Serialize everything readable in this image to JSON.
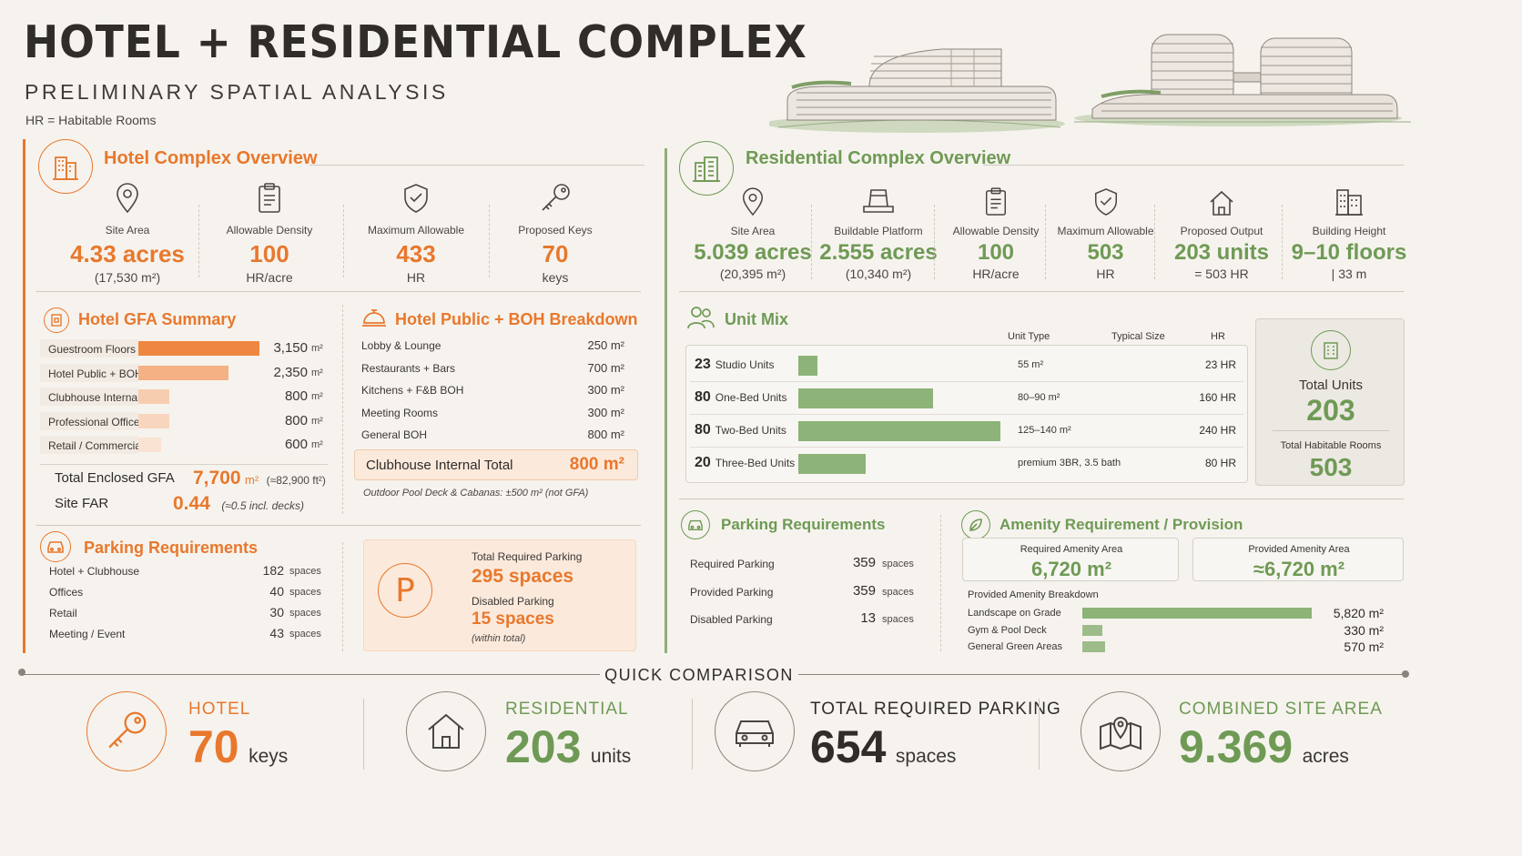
{
  "header": {
    "title": "HOTEL + RESIDENTIAL COMPLEX",
    "subtitle": "PRELIMINARY SPATIAL ANALYSIS",
    "note": "HR = Habitable Rooms"
  },
  "hotel": {
    "title": "Hotel Complex Overview",
    "stats": [
      {
        "label": "Site Area",
        "value": "4.33 acres",
        "sub": "(17,530 m²)",
        "icon": "map-pin-icon"
      },
      {
        "label": "Allowable Density",
        "value": "100",
        "sub": "HR/acre",
        "icon": "clipboard-icon"
      },
      {
        "label": "Maximum Allowable",
        "value": "433",
        "sub": "HR",
        "icon": "shield-check-icon"
      },
      {
        "label": "Proposed Keys",
        "value": "70",
        "sub": "keys",
        "icon": "key-icon"
      }
    ],
    "gfa": {
      "title": "Hotel GFA Summary",
      "rows": [
        {
          "label": "Guestroom Floors",
          "value": "3,150",
          "unit": "m²",
          "amount": 3150
        },
        {
          "label": "Hotel Public + BOH",
          "value": "2,350",
          "unit": "m²",
          "amount": 2350
        },
        {
          "label": "Clubhouse Internal",
          "value": "800",
          "unit": "m²",
          "amount": 800
        },
        {
          "label": "Professional Offices",
          "value": "800",
          "unit": "m²",
          "amount": 800
        },
        {
          "label": "Retail / Commercial",
          "value": "600",
          "unit": "m²",
          "amount": 600
        }
      ],
      "total_label": "Total Enclosed GFA",
      "total_value": "7,700",
      "total_unit": "m²",
      "total_note": "(≈82,900 ft²)",
      "far_label": "Site FAR",
      "far_value": "0.44",
      "far_note": "(≈0.5 incl. decks)"
    },
    "boh": {
      "title": "Hotel Public + BOH Breakdown",
      "rows": [
        {
          "label": "Lobby & Lounge",
          "value": "250 m²"
        },
        {
          "label": "Restaurants + Bars",
          "value": "700 m²"
        },
        {
          "label": "Kitchens + F&B BOH",
          "value": "300 m²"
        },
        {
          "label": "Meeting Rooms",
          "value": "300 m²"
        },
        {
          "label": "General BOH",
          "value": "800 m²"
        }
      ],
      "total_label": "Clubhouse Internal Total",
      "total_value": "800 m²",
      "note": "Outdoor Pool Deck & Cabanas: ±500 m² (not GFA)"
    },
    "parking": {
      "title": "Parking Requirements",
      "rows": [
        {
          "label": "Hotel + Clubhouse",
          "value": "182",
          "unit": "spaces"
        },
        {
          "label": "Offices",
          "value": "40",
          "unit": "spaces"
        },
        {
          "label": "Retail",
          "value": "30",
          "unit": "spaces"
        },
        {
          "label": "Meeting / Event",
          "value": "43",
          "unit": "spaces"
        }
      ],
      "total_label": "Total Required Parking",
      "total_value": "295 spaces",
      "disabled_label": "Disabled Parking",
      "disabled_value": "15 spaces",
      "disabled_note": "(within total)"
    }
  },
  "residential": {
    "title": "Residential Complex Overview",
    "stats": [
      {
        "label": "Site Area",
        "value": "5.039 acres",
        "sub": "(20,395 m²)",
        "icon": "map-pin-icon"
      },
      {
        "label": "Buildable Platform",
        "value": "2.555 acres",
        "sub": "(10,340 m²)",
        "icon": "platform-icon"
      },
      {
        "label": "Allowable Density",
        "value": "100",
        "sub": "HR/acre",
        "icon": "clipboard-icon"
      },
      {
        "label": "Maximum Allowable",
        "value": "503",
        "sub": "HR",
        "icon": "shield-check-icon"
      },
      {
        "label": "Proposed Output",
        "value": "203 units",
        "sub": "= 503 HR",
        "icon": "house-icon"
      },
      {
        "label": "Building Height",
        "value": "9–10 floors",
        "sub": "| 33 m",
        "icon": "building-icon"
      }
    ],
    "unit_mix": {
      "title": "Unit Mix",
      "headers": [
        "Unit Type",
        "Typical Size",
        "HR"
      ],
      "rows": [
        {
          "count": "23",
          "type": "Studio Units",
          "size": "55 m²",
          "hr": "23 HR",
          "hr_value": 23
        },
        {
          "count": "80",
          "type": "One-Bed Units",
          "size": "80–90 m²",
          "hr": "160 HR",
          "hr_value": 160
        },
        {
          "count": "80",
          "type": "Two-Bed Units",
          "size": "125–140 m²",
          "hr": "240 HR",
          "hr_value": 240
        },
        {
          "count": "20",
          "type": "Three-Bed Units",
          "size": "premium 3BR, 3.5 bath",
          "hr": "80 HR",
          "hr_value": 80
        }
      ],
      "total_units_label": "Total Units",
      "total_units_value": "203",
      "total_hr_label": "Total Habitable Rooms",
      "total_hr_value": "503"
    },
    "parking": {
      "title": "Parking Requirements",
      "rows": [
        {
          "label": "Required Parking",
          "value": "359",
          "unit": "spaces"
        },
        {
          "label": "Provided Parking",
          "value": "359",
          "unit": "spaces"
        },
        {
          "label": "Disabled Parking",
          "value": "13",
          "unit": "spaces"
        }
      ]
    },
    "amenity": {
      "title": "Amenity Requirement / Provision",
      "required_label": "Required Amenity Area",
      "required_value": "6,720 m²",
      "provided_label": "Provided Amenity Area",
      "provided_value": "≈6,720 m²",
      "breakdown_label": "Provided Amenity Breakdown",
      "rows": [
        {
          "label": "Landscape on Grade",
          "value": "5,820 m²",
          "amount": 5820
        },
        {
          "label": "Gym & Pool Deck",
          "value": "330 m²",
          "amount": 330
        },
        {
          "label": "General Green Areas",
          "value": "570 m²",
          "amount": 570
        }
      ]
    }
  },
  "comparison": {
    "title": "QUICK COMPARISON",
    "items": [
      {
        "label": "HOTEL",
        "value": "70",
        "unit": "keys",
        "icon": "key-icon"
      },
      {
        "label": "RESIDENTIAL",
        "value": "203",
        "unit": "units",
        "icon": "house-icon"
      },
      {
        "label": "TOTAL REQUIRED PARKING",
        "value": "654",
        "unit": "spaces",
        "icon": "car-icon"
      },
      {
        "label": "COMBINED SITE AREA",
        "value": "9.369",
        "unit": "acres",
        "icon": "map-icon"
      }
    ]
  },
  "colors": {
    "hotel_accent": "#e8782d",
    "residential_accent": "#6f9a55"
  }
}
